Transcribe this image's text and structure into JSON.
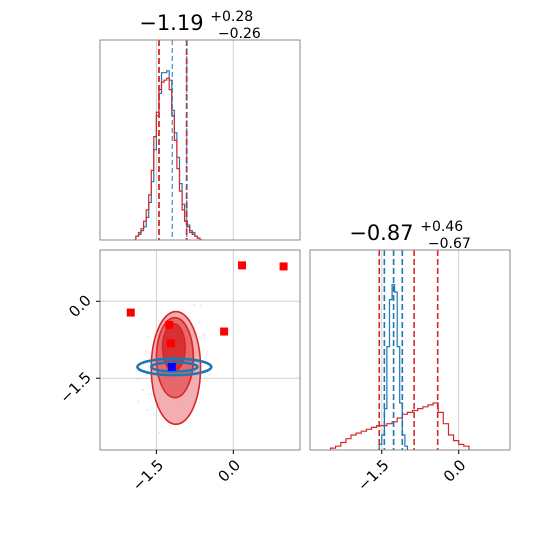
{
  "chart_data": [
    {
      "panel": "top-left",
      "type": "histogram",
      "title": {
        "value": "−1.19",
        "plus": "+0.28",
        "minus": "−0.26"
      },
      "xlim": [
        -2.6,
        1.3
      ],
      "grid": true,
      "vlines": {
        "red": [
          -1.45,
          -0.91
        ],
        "blue": [
          -1.19,
          -0.91
        ]
      },
      "series": [
        {
          "color": "#1f77b4",
          "bins": [
            -1.95,
            -1.9,
            -1.85,
            -1.8,
            -1.75,
            -1.7,
            -1.65,
            -1.6,
            -1.55,
            -1.5,
            -1.45,
            -1.4,
            -1.35,
            -1.3,
            -1.25,
            -1.2,
            -1.15,
            -1.1,
            -1.05,
            -1.0,
            -0.95,
            -0.9,
            -0.85,
            -0.8,
            -0.75,
            -0.7,
            -0.65,
            -0.6
          ],
          "counts": [
            0,
            0.02,
            0.04,
            0.05,
            0.07,
            0.12,
            0.2,
            0.31,
            0.48,
            0.66,
            0.78,
            0.89,
            0.89,
            0.9,
            0.85,
            0.69,
            0.57,
            0.44,
            0.3,
            0.19,
            0.1,
            0.08,
            0.05,
            0.04,
            0.02,
            0.01,
            0
          ]
        },
        {
          "color": "#d62728",
          "bins": [
            -1.95,
            -1.9,
            -1.85,
            -1.8,
            -1.75,
            -1.7,
            -1.65,
            -1.6,
            -1.55,
            -1.5,
            -1.45,
            -1.4,
            -1.35,
            -1.3,
            -1.25,
            -1.2,
            -1.15,
            -1.1,
            -1.05,
            -1.0,
            -0.95,
            -0.9,
            -0.85,
            -0.8,
            -0.75,
            -0.7,
            -0.65,
            -0.6
          ],
          "counts": [
            0,
            0.02,
            0.03,
            0.06,
            0.1,
            0.16,
            0.24,
            0.37,
            0.55,
            0.68,
            0.8,
            0.84,
            0.85,
            0.86,
            0.8,
            0.66,
            0.53,
            0.38,
            0.26,
            0.16,
            0.1,
            0.07,
            0.04,
            0.03,
            0.02,
            0.01,
            0
          ]
        }
      ]
    },
    {
      "panel": "bottom-left",
      "type": "scatter",
      "xlim": [
        -2.6,
        1.3
      ],
      "ylim": [
        -2.9,
        1.0
      ],
      "xticks": [
        "−1.5",
        "0.0"
      ],
      "yticks": [
        "0.0",
        "−1.5"
      ],
      "grid": true,
      "red_contours": [
        {
          "level": "outer",
          "cx": -1.12,
          "cy": -1.3,
          "rx": 0.48,
          "ry": 1.1
        },
        {
          "level": "middle",
          "cx": -1.14,
          "cy": -1.1,
          "rx": 0.36,
          "ry": 0.78
        },
        {
          "level": "inner",
          "cx": -1.16,
          "cy": -0.9,
          "rx": 0.22,
          "ry": 0.46
        }
      ],
      "blue_contours": [
        {
          "level": "outer",
          "cx": -1.15,
          "cy": -1.28,
          "rx": 0.72,
          "ry": 0.16
        },
        {
          "level": "inner",
          "cx": -1.15,
          "cy": -1.28,
          "rx": 0.45,
          "ry": 0.09
        }
      ],
      "red_markers": [
        {
          "x": -2.0,
          "y": -0.22
        },
        {
          "x": -1.25,
          "y": -0.46
        },
        {
          "x": -1.22,
          "y": -0.82
        },
        {
          "x": -0.18,
          "y": -0.59
        },
        {
          "x": 0.17,
          "y": 0.7
        },
        {
          "x": 0.98,
          "y": 0.68
        }
      ],
      "blue_marker": {
        "x": -1.2,
        "y": -1.28
      }
    },
    {
      "panel": "bottom-right",
      "type": "histogram",
      "title": {
        "value": "−0.87",
        "plus": "+0.46",
        "minus": "−0.67"
      },
      "xlim": [
        -2.9,
        1.0
      ],
      "xticks": [
        "−1.5",
        "0.0"
      ],
      "grid": true,
      "vlines": {
        "red": [
          -1.55,
          -0.87,
          -0.41
        ],
        "blue": [
          -1.45,
          -1.27,
          -1.1
        ]
      },
      "series": [
        {
          "color": "#1f77b4",
          "bins": [
            -1.6,
            -1.55,
            -1.5,
            -1.45,
            -1.4,
            -1.35,
            -1.3,
            -1.25,
            -1.2,
            -1.15,
            -1.1,
            -1.05,
            -1.0
          ],
          "counts": [
            0,
            0.03,
            0.08,
            0.22,
            0.55,
            0.8,
            0.88,
            0.84,
            0.55,
            0.25,
            0.08,
            0.02
          ]
        },
        {
          "color": "#d62728",
          "bins": [
            -2.5,
            -2.4,
            -2.3,
            -2.2,
            -2.1,
            -2.0,
            -1.9,
            -1.8,
            -1.7,
            -1.6,
            -1.5,
            -1.4,
            -1.3,
            -1.2,
            -1.1,
            -1.0,
            -0.9,
            -0.8,
            -0.7,
            -0.6,
            -0.5,
            -0.4,
            -0.3,
            -0.2,
            -0.1,
            0.0,
            0.1,
            0.2
          ],
          "counts": [
            0.01,
            0.02,
            0.04,
            0.06,
            0.08,
            0.09,
            0.1,
            0.11,
            0.12,
            0.13,
            0.13,
            0.14,
            0.15,
            0.17,
            0.19,
            0.2,
            0.21,
            0.22,
            0.23,
            0.24,
            0.25,
            0.2,
            0.14,
            0.08,
            0.05,
            0.03,
            0.02
          ]
        }
      ]
    }
  ]
}
